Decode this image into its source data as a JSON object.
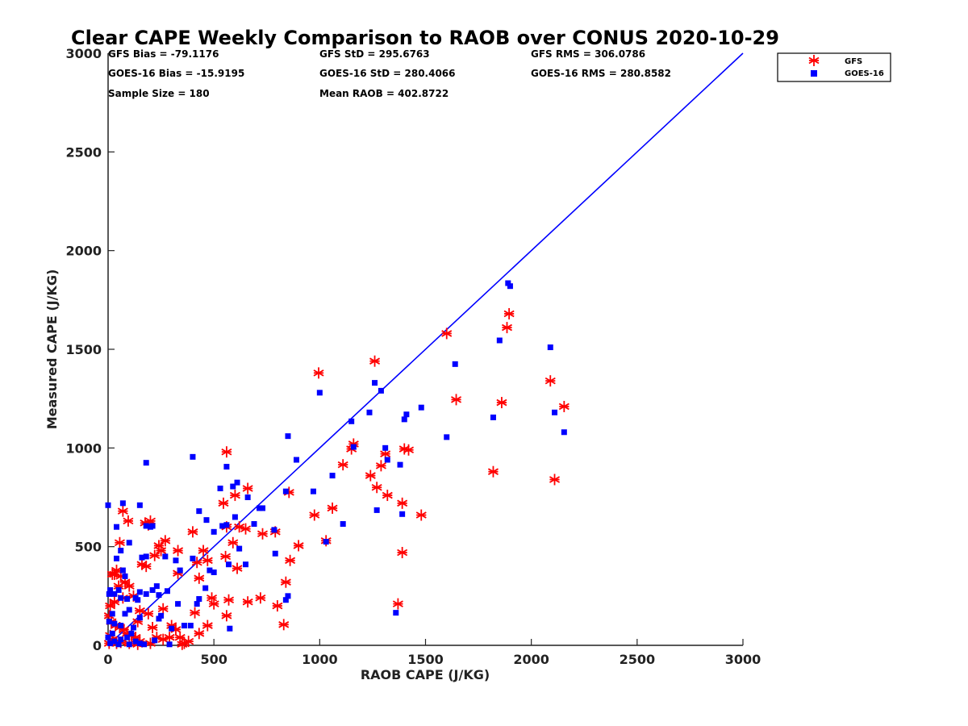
{
  "chart_data": {
    "type": "scatter",
    "title": "Clear CAPE Weekly Comparison to RAOB over CONUS 2020-10-29",
    "xlabel": "RAOB CAPE (J/KG)",
    "ylabel": "Measured CAPE (J/KG)",
    "xlim": [
      0,
      3000
    ],
    "ylim": [
      0,
      3000
    ],
    "xticks": [
      "0",
      "500",
      "1000",
      "1500",
      "2000",
      "2500",
      "3000"
    ],
    "yticks": [
      "0",
      "500",
      "1000",
      "1500",
      "2000",
      "2500",
      "3000"
    ],
    "grid": false,
    "legend_position": "top-right",
    "reference_line": {
      "x": [
        0,
        3000
      ],
      "y": [
        0,
        3000
      ],
      "color": "#0000ff"
    },
    "stats": {
      "gfs_bias": "GFS Bias = -79.1176",
      "gfs_std": "GFS StD = 295.6763",
      "gfs_rms": "GFS RMS = 306.0786",
      "goes_bias": "GOES-16 Bias = -15.9195",
      "goes_std": "GOES-16 StD = 280.4066",
      "goes_rms": "GOES-16 RMS = 280.8582",
      "sample_size": "Sample Size = 180",
      "mean_raob": "Mean RAOB = 402.8722"
    },
    "series": [
      {
        "name": "GFS",
        "marker": "asterisk",
        "color": "#ff0000",
        "points": [
          [
            1600,
            1580
          ],
          [
            1895,
            1680
          ],
          [
            1885,
            1610
          ],
          [
            1260,
            1440
          ],
          [
            995,
            1380
          ],
          [
            2090,
            1340
          ],
          [
            1645,
            1245
          ],
          [
            1860,
            1230
          ],
          [
            2155,
            1210
          ],
          [
            1160,
            1020
          ],
          [
            1150,
            995
          ],
          [
            1400,
            995
          ],
          [
            1420,
            990
          ],
          [
            1310,
            970
          ],
          [
            1110,
            915
          ],
          [
            1290,
            910
          ],
          [
            1240,
            860
          ],
          [
            1820,
            880
          ],
          [
            2110,
            840
          ],
          [
            1270,
            800
          ],
          [
            1320,
            760
          ],
          [
            1390,
            720
          ],
          [
            1060,
            695
          ],
          [
            1030,
            530
          ],
          [
            975,
            660
          ],
          [
            1480,
            660
          ],
          [
            1390,
            470
          ],
          [
            1370,
            210
          ],
          [
            560,
            980
          ],
          [
            660,
            795
          ],
          [
            600,
            760
          ],
          [
            545,
            720
          ],
          [
            855,
            775
          ],
          [
            730,
            565
          ],
          [
            790,
            575
          ],
          [
            900,
            505
          ],
          [
            560,
            600
          ],
          [
            620,
            600
          ],
          [
            650,
            590
          ],
          [
            590,
            520
          ],
          [
            610,
            390
          ],
          [
            860,
            430
          ],
          [
            840,
            320
          ],
          [
            830,
            105
          ],
          [
            800,
            200
          ],
          [
            720,
            240
          ],
          [
            660,
            220
          ],
          [
            570,
            230
          ],
          [
            560,
            150
          ],
          [
            555,
            450
          ],
          [
            450,
            480
          ],
          [
            420,
            420
          ],
          [
            470,
            430
          ],
          [
            500,
            210
          ],
          [
            490,
            240
          ],
          [
            470,
            100
          ],
          [
            430,
            340
          ],
          [
            410,
            165
          ],
          [
            430,
            60
          ],
          [
            400,
            575
          ],
          [
            330,
            480
          ],
          [
            330,
            365
          ],
          [
            300,
            100
          ],
          [
            270,
            530
          ],
          [
            260,
            185
          ],
          [
            260,
            30
          ],
          [
            250,
            480
          ],
          [
            240,
            505
          ],
          [
            220,
            455
          ],
          [
            200,
            630
          ],
          [
            190,
            610
          ],
          [
            175,
            620
          ],
          [
            180,
            400
          ],
          [
            160,
            410
          ],
          [
            150,
            175
          ],
          [
            140,
            120
          ],
          [
            190,
            160
          ],
          [
            210,
            90
          ],
          [
            200,
            10
          ],
          [
            230,
            40
          ],
          [
            290,
            40
          ],
          [
            320,
            80
          ],
          [
            340,
            40
          ],
          [
            360,
            10
          ],
          [
            380,
            20
          ],
          [
            350,
            5
          ],
          [
            95,
            630
          ],
          [
            70,
            680
          ],
          [
            55,
            520
          ],
          [
            40,
            380
          ],
          [
            30,
            360
          ],
          [
            20,
            360
          ],
          [
            60,
            350
          ],
          [
            50,
            300
          ],
          [
            80,
            320
          ],
          [
            100,
            300
          ],
          [
            120,
            250
          ],
          [
            70,
            240
          ],
          [
            30,
            220
          ],
          [
            10,
            200
          ],
          [
            5,
            150
          ],
          [
            15,
            120
          ],
          [
            35,
            100
          ],
          [
            55,
            90
          ],
          [
            75,
            80
          ],
          [
            90,
            60
          ],
          [
            110,
            50
          ],
          [
            130,
            40
          ],
          [
            150,
            20
          ],
          [
            10,
            50
          ],
          [
            20,
            30
          ],
          [
            5,
            10
          ],
          [
            40,
            10
          ],
          [
            60,
            15
          ],
          [
            100,
            10
          ],
          [
            140,
            5
          ]
        ]
      },
      {
        "name": "GOES-16",
        "marker": "square",
        "color": "#0000ff",
        "points": [
          [
            1890,
            1835
          ],
          [
            1900,
            1820
          ],
          [
            1850,
            1545
          ],
          [
            2090,
            1510
          ],
          [
            1640,
            1425
          ],
          [
            1260,
            1330
          ],
          [
            1000,
            1280
          ],
          [
            1290,
            1290
          ],
          [
            2110,
            1180
          ],
          [
            2155,
            1080
          ],
          [
            1480,
            1205
          ],
          [
            1410,
            1170
          ],
          [
            1400,
            1145
          ],
          [
            1235,
            1180
          ],
          [
            1150,
            1135
          ],
          [
            1820,
            1155
          ],
          [
            1600,
            1055
          ],
          [
            1310,
            1000
          ],
          [
            1160,
            1005
          ],
          [
            1320,
            940
          ],
          [
            1380,
            915
          ],
          [
            1060,
            860
          ],
          [
            1270,
            685
          ],
          [
            1390,
            665
          ],
          [
            1110,
            615
          ],
          [
            1030,
            525
          ],
          [
            1360,
            165
          ],
          [
            850,
            1060
          ],
          [
            890,
            940
          ],
          [
            970,
            780
          ],
          [
            840,
            780
          ],
          [
            400,
            955
          ],
          [
            180,
            925
          ],
          [
            560,
            905
          ],
          [
            590,
            805
          ],
          [
            610,
            825
          ],
          [
            530,
            795
          ],
          [
            660,
            750
          ],
          [
            730,
            695
          ],
          [
            715,
            695
          ],
          [
            690,
            615
          ],
          [
            600,
            650
          ],
          [
            560,
            610
          ],
          [
            540,
            605
          ],
          [
            465,
            635
          ],
          [
            430,
            680
          ],
          [
            500,
            575
          ],
          [
            620,
            490
          ],
          [
            650,
            410
          ],
          [
            570,
            410
          ],
          [
            480,
            380
          ],
          [
            500,
            370
          ],
          [
            460,
            290
          ],
          [
            430,
            235
          ],
          [
            420,
            210
          ],
          [
            400,
            440
          ],
          [
            340,
            380
          ],
          [
            320,
            430
          ],
          [
            270,
            450
          ],
          [
            280,
            275
          ],
          [
            230,
            300
          ],
          [
            240,
            255
          ],
          [
            250,
            150
          ],
          [
            240,
            135
          ],
          [
            330,
            210
          ],
          [
            360,
            100
          ],
          [
            390,
            100
          ],
          [
            300,
            85
          ],
          [
            290,
            5
          ],
          [
            220,
            25
          ],
          [
            210,
            280
          ],
          [
            180,
            260
          ],
          [
            150,
            270
          ],
          [
            180,
            450
          ],
          [
            160,
            445
          ],
          [
            150,
            710
          ],
          [
            200,
            600
          ],
          [
            180,
            605
          ],
          [
            210,
            605
          ],
          [
            785,
            585
          ],
          [
            790,
            465
          ],
          [
            840,
            230
          ],
          [
            850,
            250
          ],
          [
            575,
            85
          ],
          [
            0,
            710
          ],
          [
            70,
            720
          ],
          [
            40,
            600
          ],
          [
            100,
            520
          ],
          [
            60,
            480
          ],
          [
            40,
            440
          ],
          [
            70,
            380
          ],
          [
            80,
            350
          ],
          [
            50,
            280
          ],
          [
            10,
            280
          ],
          [
            5,
            260
          ],
          [
            30,
            260
          ],
          [
            60,
            240
          ],
          [
            90,
            235
          ],
          [
            130,
            240
          ],
          [
            140,
            230
          ],
          [
            100,
            180
          ],
          [
            80,
            160
          ],
          [
            20,
            160
          ],
          [
            5,
            120
          ],
          [
            30,
            110
          ],
          [
            60,
            100
          ],
          [
            120,
            90
          ],
          [
            150,
            140
          ],
          [
            110,
            60
          ],
          [
            90,
            40
          ],
          [
            60,
            30
          ],
          [
            30,
            20
          ],
          [
            10,
            10
          ],
          [
            50,
            5
          ],
          [
            100,
            5
          ],
          [
            130,
            20
          ],
          [
            150,
            10
          ],
          [
            170,
            5
          ],
          [
            0,
            40
          ],
          [
            20,
            60
          ]
        ]
      }
    ]
  }
}
